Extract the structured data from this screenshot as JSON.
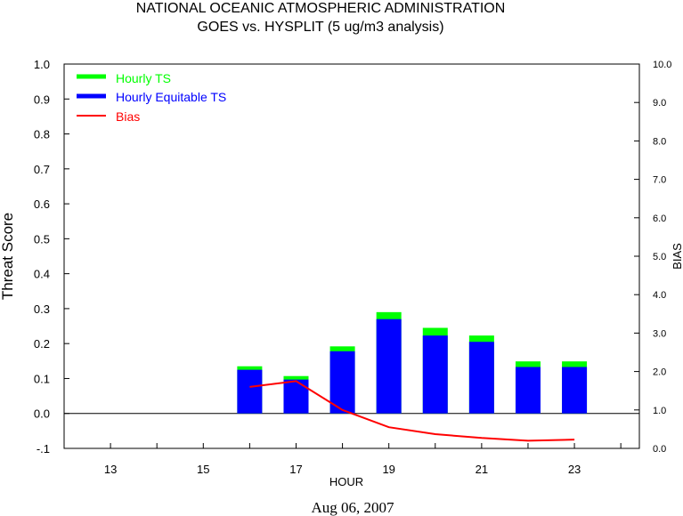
{
  "title_line1": "NATIONAL OCEANIC ATMOSPHERIC ADMINISTRATION",
  "title_line2": "GOES vs. HYSPLIT  (5 ug/m3 analysis)",
  "xlabel": "HOUR",
  "ylabel_left": "Threat Score",
  "ylabel_right": "BIAS",
  "date_label": "Aug 06, 2007",
  "colors": {
    "hourly_ts": "#00ff00",
    "hourly_ets": "#0000ff",
    "bias": "#ff0000"
  },
  "chart_data": {
    "type": "bar",
    "legend_placement": "top-left",
    "x_ticks": [
      13,
      15,
      17,
      19,
      21,
      23
    ],
    "x_range": [
      12,
      24.4
    ],
    "ylim": [
      -0.1,
      1.0
    ],
    "y_ticks": [
      "1.0",
      "0.9",
      "0.8",
      "0.7",
      "0.6",
      "0.5",
      "0.4",
      "0.3",
      "0.2",
      "0.1",
      "0.0",
      "-.1"
    ],
    "y2lim": [
      0.0,
      10.0
    ],
    "y2_ticks": [
      "10.0",
      "9.0",
      "8.0",
      "7.0",
      "6.0",
      "5.0",
      "4.0",
      "3.0",
      "2.0",
      "1.0",
      "0.0"
    ],
    "categories": [
      16,
      17,
      18,
      19,
      20,
      21,
      22,
      23
    ],
    "series": [
      {
        "name": "Hourly TS",
        "values": [
          0.135,
          0.107,
          0.192,
          0.29,
          0.245,
          0.223,
          0.149,
          0.149
        ]
      },
      {
        "name": "Hourly Equitable TS",
        "values": [
          0.125,
          0.097,
          0.178,
          0.27,
          0.223,
          0.205,
          0.133,
          0.133
        ]
      },
      {
        "name": "Bias",
        "values": [
          1.6,
          1.75,
          1.0,
          0.55,
          0.37,
          0.27,
          0.2,
          0.23
        ]
      }
    ]
  }
}
